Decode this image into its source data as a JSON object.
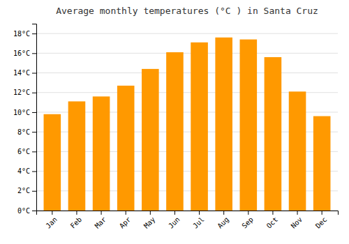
{
  "chart_data": {
    "type": "bar",
    "title": "Average monthly temperatures (°C ) in Santa Cruz",
    "categories": [
      "Jan",
      "Feb",
      "Mar",
      "Apr",
      "May",
      "Jun",
      "Jul",
      "Aug",
      "Sep",
      "Oct",
      "Nov",
      "Dec"
    ],
    "values": [
      9.8,
      11.1,
      11.6,
      12.7,
      14.4,
      16.1,
      17.1,
      17.6,
      17.4,
      15.6,
      12.1,
      9.6
    ],
    "color": "#FF9900",
    "ylim": [
      0,
      19
    ],
    "yticks": [
      {
        "value": 0,
        "label": "0°C"
      },
      {
        "value": 2,
        "label": "2°C"
      },
      {
        "value": 4,
        "label": "4°C"
      },
      {
        "value": 6,
        "label": "6°C"
      },
      {
        "value": 8,
        "label": "8°C"
      },
      {
        "value": 10,
        "label": "10°C"
      },
      {
        "value": 12,
        "label": "12°C"
      },
      {
        "value": 14,
        "label": "14°C"
      },
      {
        "value": 16,
        "label": "16°C"
      },
      {
        "value": 18,
        "label": "18°C"
      }
    ],
    "grid": true
  }
}
